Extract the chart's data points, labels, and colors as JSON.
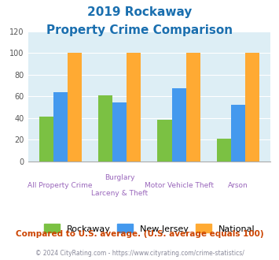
{
  "title_line1": "2019 Rockaway",
  "title_line2": "Property Crime Comparison",
  "cat_labels_line1": [
    "All Property Crime",
    "Burglary",
    "Motor Vehicle Theft",
    "Arson"
  ],
  "cat_labels_line2": [
    "",
    "Larceny & Theft",
    "",
    ""
  ],
  "rockaway": [
    41,
    61,
    38,
    21
  ],
  "new_jersey": [
    64,
    54,
    67,
    52
  ],
  "national": [
    100,
    100,
    100,
    100
  ],
  "bar_colors": {
    "rockaway": "#7bc143",
    "new_jersey": "#4499ee",
    "national": "#ffaa33"
  },
  "ylim": [
    0,
    120
  ],
  "yticks": [
    0,
    20,
    40,
    60,
    80,
    100,
    120
  ],
  "title_color": "#1a6faf",
  "plot_bg": "#ddeef5",
  "footer_text": "Compared to U.S. average. (U.S. average equals 100)",
  "copyright_text": "© 2024 CityRating.com - https://www.cityrating.com/crime-statistics/",
  "legend_labels": [
    "Rockaway",
    "New Jersey",
    "National"
  ],
  "xlabel_color": "#9966bb",
  "footer_color": "#cc4400",
  "copyright_color": "#888899"
}
